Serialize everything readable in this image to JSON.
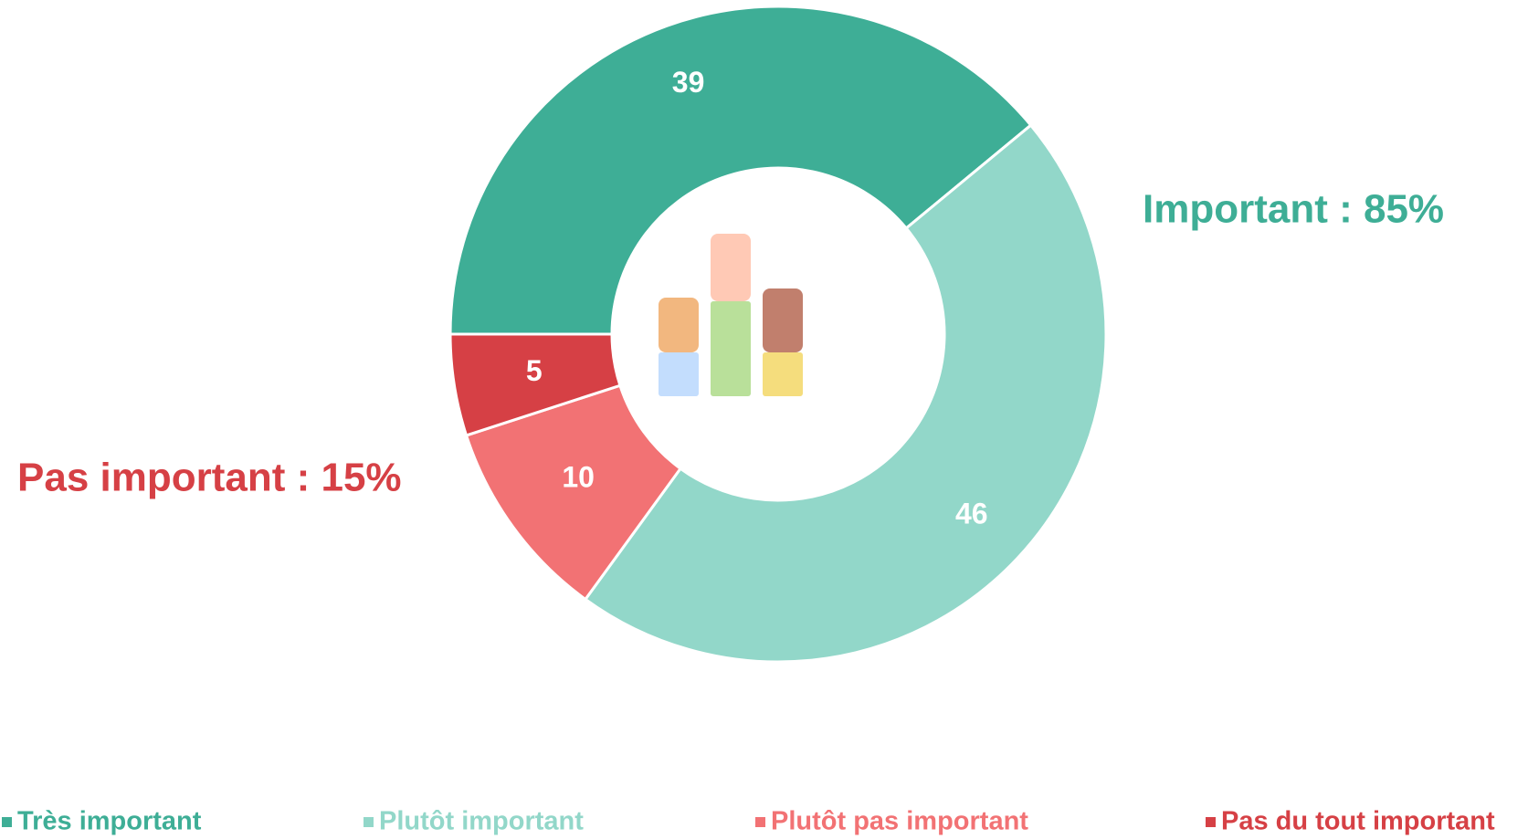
{
  "chart_data": {
    "type": "donut",
    "categories": [
      "Très important",
      "Plutôt important",
      "Plutôt pas important",
      "Pas du tout important"
    ],
    "values": [
      39,
      46,
      10,
      5
    ],
    "colors": [
      "#3eae96",
      "#92d7c9",
      "#f27274",
      "#d64045"
    ],
    "annotations": [
      {
        "text": "Important : 85%",
        "color": "#3eae96"
      },
      {
        "text": "Pas important : 15%",
        "color": "#d64045"
      }
    ],
    "legend": "bottom"
  }
}
